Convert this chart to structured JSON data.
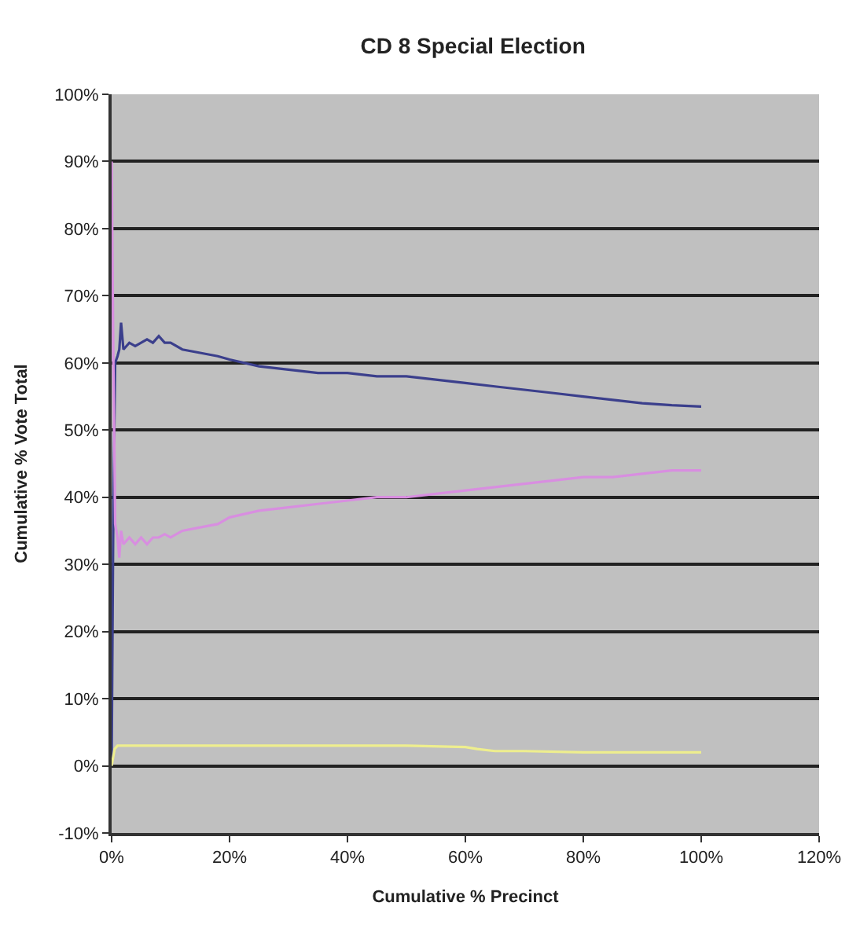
{
  "chart_data": {
    "type": "line",
    "title": "CD 8 Special Election",
    "xlabel": "Cumulative % Precinct",
    "ylabel": "Cumulative % Vote Total",
    "series": [
      {
        "color": "#3b3f8c",
        "x": [
          0,
          0.3,
          0.6,
          1,
          1.3,
          1.6,
          2,
          3,
          4,
          5,
          6,
          7,
          8,
          9,
          10,
          12,
          15,
          18,
          20,
          25,
          30,
          35,
          40,
          45,
          50,
          55,
          60,
          65,
          70,
          75,
          80,
          85,
          90,
          95,
          100
        ],
        "values": [
          0,
          40,
          60,
          61,
          62,
          66,
          62,
          63,
          62.5,
          63,
          63.5,
          63,
          64,
          63,
          63,
          62,
          61.5,
          61,
          60.5,
          59.5,
          59,
          58.5,
          58.5,
          58,
          58,
          57.5,
          57,
          56.5,
          56,
          55.5,
          55,
          54.5,
          54,
          53.7,
          53.5
        ]
      },
      {
        "color": "#d88ee0",
        "x": [
          0,
          0.3,
          0.6,
          1,
          1.3,
          1.6,
          2,
          3,
          4,
          5,
          6,
          7,
          8,
          9,
          10,
          12,
          15,
          18,
          20,
          25,
          30,
          35,
          40,
          45,
          50,
          55,
          60,
          65,
          70,
          75,
          80,
          85,
          90,
          95,
          100
        ],
        "values": [
          90,
          60,
          36,
          34,
          31,
          35,
          33,
          34,
          33,
          34,
          33,
          34,
          34,
          34.5,
          34,
          35,
          35.5,
          36,
          37,
          38,
          38.5,
          39,
          39.5,
          40,
          40,
          40.5,
          41,
          41.5,
          42,
          42.5,
          43,
          43,
          43.5,
          44,
          44
        ]
      },
      {
        "color": "#eeee8e",
        "x": [
          0,
          0.5,
          1,
          2,
          5,
          10,
          20,
          30,
          40,
          50,
          60,
          62,
          65,
          70,
          80,
          90,
          100
        ],
        "values": [
          0,
          2.5,
          3,
          3,
          3,
          3,
          3,
          3,
          3,
          3,
          2.8,
          2.5,
          2.2,
          2.2,
          2,
          2,
          2
        ]
      }
    ],
    "xlim": [
      0,
      120
    ],
    "xticks": [
      {
        "value": 0,
        "label": "0%"
      },
      {
        "value": 20,
        "label": "20%"
      },
      {
        "value": 40,
        "label": "40%"
      },
      {
        "value": 60,
        "label": "60%"
      },
      {
        "value": 80,
        "label": "80%"
      },
      {
        "value": 100,
        "label": "100%"
      },
      {
        "value": 120,
        "label": "120%"
      }
    ],
    "ylim": [
      -10,
      100
    ],
    "yticks": [
      {
        "value": -10,
        "label": "-10%"
      },
      {
        "value": 0,
        "label": "0%"
      },
      {
        "value": 10,
        "label": "10%"
      },
      {
        "value": 20,
        "label": "20%"
      },
      {
        "value": 30,
        "label": "30%"
      },
      {
        "value": 40,
        "label": "40%"
      },
      {
        "value": 50,
        "label": "50%"
      },
      {
        "value": 60,
        "label": "60%"
      },
      {
        "value": 70,
        "label": "70%"
      },
      {
        "value": 80,
        "label": "80%"
      },
      {
        "value": 90,
        "label": "90%"
      },
      {
        "value": 100,
        "label": "100%"
      }
    ],
    "grid": "y",
    "legend": false,
    "marker": "none",
    "line_style": "solid"
  }
}
